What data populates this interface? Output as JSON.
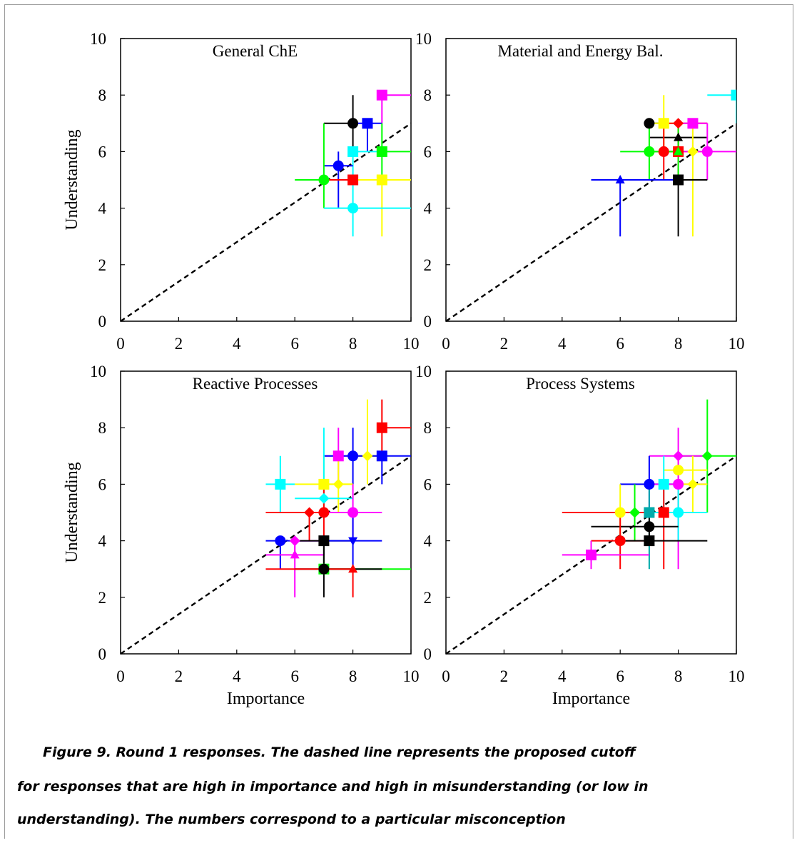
{
  "chart_data": [
    {
      "type": "scatter",
      "title": "General ChE",
      "ylabel": "Understanding",
      "xlabel": "",
      "xlim": [
        0,
        10
      ],
      "ylim": [
        0,
        10
      ],
      "xticks": [
        "0",
        "2",
        "4",
        "6",
        "8",
        "10"
      ],
      "yticks": [
        "0",
        "2",
        "4",
        "6",
        "8",
        "10"
      ],
      "reference_line": {
        "style": "dashed",
        "from": [
          0,
          0
        ],
        "to": [
          10,
          7
        ]
      },
      "points": [
        {
          "x": 9,
          "y": 8,
          "color": "#ff00ff",
          "marker": "square",
          "xerr": [
            9,
            10
          ],
          "yerr": [
            7,
            8
          ]
        },
        {
          "x": 8,
          "y": 7,
          "color": "#000000",
          "marker": "circle",
          "xerr": [
            7,
            8
          ],
          "yerr": [
            6,
            8
          ]
        },
        {
          "x": 8.5,
          "y": 7,
          "color": "#0000ff",
          "marker": "square",
          "xerr": [
            8,
            9
          ],
          "yerr": [
            6,
            7
          ]
        },
        {
          "x": 8,
          "y": 6,
          "color": "#00ffff",
          "marker": "square",
          "xerr": [
            8,
            9
          ],
          "yerr": [
            5,
            6
          ]
        },
        {
          "x": 9,
          "y": 6,
          "color": "#00ff00",
          "marker": "square",
          "xerr": [
            9,
            10
          ],
          "yerr": [
            5,
            7
          ]
        },
        {
          "x": 7.5,
          "y": 5.5,
          "color": "#0000ff",
          "marker": "circle",
          "xerr": [
            7,
            8
          ],
          "yerr": [
            4,
            6
          ]
        },
        {
          "x": 7,
          "y": 5,
          "color": "#00ff00",
          "marker": "circle",
          "xerr": [
            6,
            8
          ],
          "yerr": [
            4,
            7
          ]
        },
        {
          "x": 8,
          "y": 5,
          "color": "#ff0000",
          "marker": "square",
          "xerr": [
            7,
            9
          ],
          "yerr": [
            5,
            5
          ]
        },
        {
          "x": 9,
          "y": 5,
          "color": "#ffff00",
          "marker": "square",
          "xerr": [
            8,
            10
          ],
          "yerr": [
            3,
            5
          ]
        },
        {
          "x": 8,
          "y": 4,
          "color": "#00ffff",
          "marker": "circle",
          "xerr": [
            7,
            10
          ],
          "yerr": [
            3,
            5
          ]
        }
      ]
    },
    {
      "type": "scatter",
      "title": "Material and Energy Bal.",
      "ylabel": "",
      "xlabel": "",
      "xlim": [
        0,
        10
      ],
      "ylim": [
        0,
        10
      ],
      "xticks": [
        "0",
        "2",
        "4",
        "6",
        "8",
        "10"
      ],
      "yticks": [
        "0",
        "2",
        "4",
        "6",
        "8",
        "10"
      ],
      "reference_line": {
        "style": "dashed",
        "from": [
          0,
          0
        ],
        "to": [
          10,
          7
        ]
      },
      "points": [
        {
          "x": 10,
          "y": 8,
          "color": "#00ffff",
          "marker": "square",
          "xerr": [
            9,
            10
          ],
          "yerr": [
            7,
            8
          ]
        },
        {
          "x": 7,
          "y": 7,
          "color": "#000000",
          "marker": "circle",
          "xerr": [
            7,
            7.5
          ],
          "yerr": [
            7,
            7
          ]
        },
        {
          "x": 7.5,
          "y": 7,
          "color": "#ffff00",
          "marker": "square",
          "xerr": [
            7,
            8
          ],
          "yerr": [
            6,
            8
          ]
        },
        {
          "x": 8,
          "y": 7,
          "color": "#ff0000",
          "marker": "diamond",
          "xerr": [
            7.5,
            9
          ],
          "yerr": [
            6,
            7
          ]
        },
        {
          "x": 8.5,
          "y": 7,
          "color": "#ff00ff",
          "marker": "square",
          "xerr": [
            8,
            9
          ],
          "yerr": [
            6,
            7
          ]
        },
        {
          "x": 8,
          "y": 6.5,
          "color": "#000000",
          "marker": "triangle",
          "xerr": [
            7,
            9
          ],
          "yerr": [
            6,
            6.5
          ]
        },
        {
          "x": 7,
          "y": 6,
          "color": "#00ff00",
          "marker": "circle",
          "xerr": [
            6,
            8
          ],
          "yerr": [
            5,
            7
          ]
        },
        {
          "x": 7.5,
          "y": 6,
          "color": "#ff0000",
          "marker": "circle",
          "xerr": [
            7,
            8
          ],
          "yerr": [
            5,
            7
          ]
        },
        {
          "x": 8,
          "y": 6,
          "color": "#ff0000",
          "marker": "square",
          "xerr": [
            7.5,
            8.5
          ],
          "yerr": [
            5,
            7
          ]
        },
        {
          "x": 8,
          "y": 6,
          "color": "#00ff00",
          "marker": "triangle",
          "xerr": [
            7,
            9
          ],
          "yerr": [
            5,
            7
          ]
        },
        {
          "x": 8.5,
          "y": 6,
          "color": "#ffff00",
          "marker": "diamond",
          "xerr": [
            8,
            9
          ],
          "yerr": [
            3,
            7
          ]
        },
        {
          "x": 9,
          "y": 6,
          "color": "#ff00ff",
          "marker": "circle",
          "xerr": [
            8,
            10
          ],
          "yerr": [
            5,
            7
          ]
        },
        {
          "x": 8,
          "y": 5,
          "color": "#000000",
          "marker": "square",
          "xerr": [
            7,
            9
          ],
          "yerr": [
            3,
            5
          ]
        },
        {
          "x": 6,
          "y": 5,
          "color": "#0000ff",
          "marker": "triangle",
          "xerr": [
            5,
            8
          ],
          "yerr": [
            3,
            5
          ]
        }
      ]
    },
    {
      "type": "scatter",
      "title": "Reactive Processes",
      "ylabel": "Understanding",
      "xlabel": "Importance",
      "xlim": [
        0,
        10
      ],
      "ylim": [
        0,
        10
      ],
      "xticks": [
        "0",
        "2",
        "4",
        "6",
        "8",
        "10"
      ],
      "yticks": [
        "0",
        "2",
        "4",
        "6",
        "8",
        "10"
      ],
      "reference_line": {
        "style": "dashed",
        "from": [
          0,
          0
        ],
        "to": [
          10,
          7
        ]
      },
      "points": [
        {
          "x": 9,
          "y": 8,
          "color": "#ff0000",
          "marker": "square",
          "xerr": [
            9,
            10
          ],
          "yerr": [
            7,
            9
          ]
        },
        {
          "x": 7.5,
          "y": 7,
          "color": "#ff00ff",
          "marker": "square",
          "xerr": [
            7,
            8
          ],
          "yerr": [
            6,
            8
          ]
        },
        {
          "x": 8,
          "y": 7,
          "color": "#0000ff",
          "marker": "circle",
          "xerr": [
            7,
            9
          ],
          "yerr": [
            6,
            8
          ]
        },
        {
          "x": 8.5,
          "y": 7,
          "color": "#ffff00",
          "marker": "diamond",
          "xerr": [
            8,
            9
          ],
          "yerr": [
            6,
            9
          ]
        },
        {
          "x": 9,
          "y": 7,
          "color": "#0000ff",
          "marker": "square",
          "xerr": [
            8,
            10
          ],
          "yerr": [
            6,
            7
          ]
        },
        {
          "x": 5.5,
          "y": 6,
          "color": "#00ffff",
          "marker": "square",
          "xerr": [
            5,
            6
          ],
          "yerr": [
            5,
            7
          ]
        },
        {
          "x": 7,
          "y": 6,
          "color": "#ffff00",
          "marker": "square",
          "xerr": [
            6,
            8
          ],
          "yerr": [
            5,
            7
          ]
        },
        {
          "x": 7.5,
          "y": 6,
          "color": "#ffff00",
          "marker": "diamond",
          "xerr": [
            7,
            8
          ],
          "yerr": [
            5,
            7
          ]
        },
        {
          "x": 7,
          "y": 5.5,
          "color": "#00ffff",
          "marker": "diamond",
          "xerr": [
            6,
            8
          ],
          "yerr": [
            5,
            8
          ]
        },
        {
          "x": 6.5,
          "y": 5,
          "color": "#ff0000",
          "marker": "diamond",
          "xerr": [
            5,
            7
          ],
          "yerr": [
            4,
            5
          ]
        },
        {
          "x": 7,
          "y": 5,
          "color": "#ff0000",
          "marker": "circle",
          "xerr": [
            6,
            8
          ],
          "yerr": [
            4,
            6
          ]
        },
        {
          "x": 8,
          "y": 5,
          "color": "#ff00ff",
          "marker": "circle",
          "xerr": [
            7,
            9
          ],
          "yerr": [
            4,
            6
          ]
        },
        {
          "x": 5.5,
          "y": 4,
          "color": "#0000ff",
          "marker": "circle",
          "xerr": [
            5,
            7
          ],
          "yerr": [
            3,
            4
          ]
        },
        {
          "x": 6,
          "y": 4,
          "color": "#ff00ff",
          "marker": "diamond",
          "xerr": [
            6,
            7
          ],
          "yerr": [
            3.5,
            4
          ]
        },
        {
          "x": 7,
          "y": 4,
          "color": "#000000",
          "marker": "square",
          "xerr": [
            6,
            8
          ],
          "yerr": [
            3,
            4
          ]
        },
        {
          "x": 8,
          "y": 4,
          "color": "#0000ff",
          "marker": "triangle-down",
          "xerr": [
            7,
            9
          ],
          "yerr": [
            3,
            5
          ]
        },
        {
          "x": 6,
          "y": 3.5,
          "color": "#ff00ff",
          "marker": "triangle",
          "xerr": [
            5,
            7
          ],
          "yerr": [
            2,
            4
          ]
        },
        {
          "x": 7,
          "y": 3,
          "color": "#00ff00",
          "marker": "square",
          "xerr": [
            7,
            10
          ],
          "yerr": [
            3,
            3.5
          ]
        },
        {
          "x": 7,
          "y": 3,
          "color": "#000000",
          "marker": "circle",
          "xerr": [
            6,
            9
          ],
          "yerr": [
            2,
            4
          ]
        },
        {
          "x": 8,
          "y": 3,
          "color": "#ff0000",
          "marker": "triangle",
          "xerr": [
            5,
            8
          ],
          "yerr": [
            2,
            3
          ]
        }
      ]
    },
    {
      "type": "scatter",
      "title": "Process Systems",
      "ylabel": "",
      "xlabel": "Importance",
      "xlim": [
        0,
        10
      ],
      "ylim": [
        0,
        10
      ],
      "xticks": [
        "0",
        "2",
        "4",
        "6",
        "8",
        "10"
      ],
      "yticks": [
        "0",
        "2",
        "4",
        "6",
        "8",
        "10"
      ],
      "reference_line": {
        "style": "dashed",
        "from": [
          0,
          0
        ],
        "to": [
          10,
          7
        ]
      },
      "points": [
        {
          "x": 9,
          "y": 7,
          "color": "#00ff00",
          "marker": "diamond",
          "xerr": [
            8,
            10
          ],
          "yerr": [
            5,
            9
          ]
        },
        {
          "x": 8,
          "y": 7,
          "color": "#ff00ff",
          "marker": "diamond",
          "xerr": [
            7,
            9
          ],
          "yerr": [
            6,
            8
          ]
        },
        {
          "x": 8,
          "y": 6.5,
          "color": "#ffff00",
          "marker": "circle",
          "xerr": [
            7.5,
            9
          ],
          "yerr": [
            5,
            7
          ]
        },
        {
          "x": 7,
          "y": 6,
          "color": "#0000ff",
          "marker": "circle",
          "xerr": [
            6,
            8
          ],
          "yerr": [
            5,
            7
          ]
        },
        {
          "x": 7.5,
          "y": 6,
          "color": "#00ffff",
          "marker": "square",
          "xerr": [
            7,
            8
          ],
          "yerr": [
            5,
            7
          ]
        },
        {
          "x": 8,
          "y": 6,
          "color": "#ff00ff",
          "marker": "circle",
          "xerr": [
            7,
            9
          ],
          "yerr": [
            3,
            7
          ]
        },
        {
          "x": 8.5,
          "y": 6,
          "color": "#ffff00",
          "marker": "diamond",
          "xerr": [
            8,
            9
          ],
          "yerr": [
            5,
            7
          ]
        },
        {
          "x": 6,
          "y": 5,
          "color": "#ffff00",
          "marker": "circle",
          "xerr": [
            5,
            7
          ],
          "yerr": [
            4,
            6
          ]
        },
        {
          "x": 6.5,
          "y": 5,
          "color": "#00ff00",
          "marker": "diamond",
          "xerr": [
            6,
            7
          ],
          "yerr": [
            4,
            6
          ]
        },
        {
          "x": 7,
          "y": 5,
          "color": "#00aaaa",
          "marker": "square",
          "xerr": [
            6,
            8
          ],
          "yerr": [
            3,
            6
          ]
        },
        {
          "x": 7.5,
          "y": 5,
          "color": "#ff0000",
          "marker": "square",
          "xerr": [
            4,
            8
          ],
          "yerr": [
            3,
            6
          ]
        },
        {
          "x": 8,
          "y": 5,
          "color": "#00ffff",
          "marker": "circle",
          "xerr": [
            7,
            9
          ],
          "yerr": [
            4,
            6
          ]
        },
        {
          "x": 7,
          "y": 4.5,
          "color": "#000000",
          "marker": "circle",
          "xerr": [
            5,
            8
          ],
          "yerr": [
            4,
            5
          ]
        },
        {
          "x": 6,
          "y": 4,
          "color": "#ff0000",
          "marker": "circle",
          "xerr": [
            5,
            7
          ],
          "yerr": [
            3,
            5
          ]
        },
        {
          "x": 7,
          "y": 4,
          "color": "#000000",
          "marker": "square",
          "xerr": [
            6,
            9
          ],
          "yerr": [
            4,
            4
          ]
        },
        {
          "x": 5,
          "y": 3.5,
          "color": "#ff00ff",
          "marker": "square",
          "xerr": [
            4,
            7
          ],
          "yerr": [
            3,
            4
          ]
        }
      ]
    }
  ],
  "caption": {
    "lines": [
      "Figure 9. Round 1 responses. The dashed line represents the proposed cutoff",
      "for responses that are high in importance and high in misunderstanding (or low in",
      "understanding). The numbers correspond to a particular misconception"
    ]
  }
}
